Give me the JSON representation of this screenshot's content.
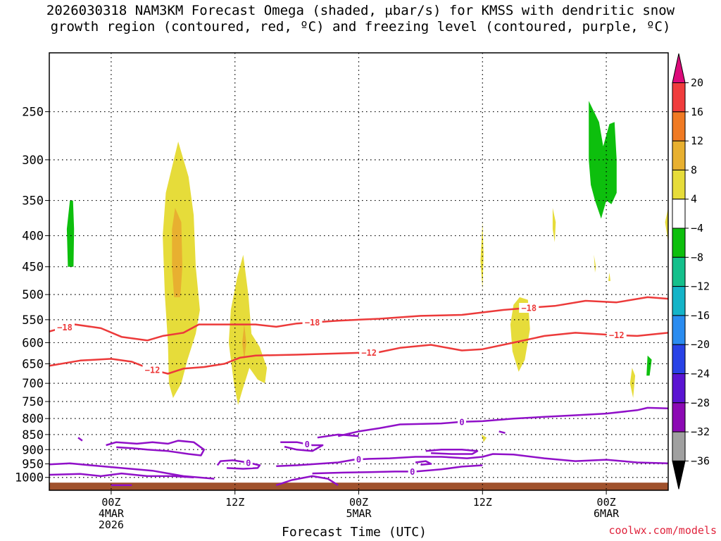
{
  "title_line1": "2026030318 NAM3KM Forecast Omega (shaded, μbar/s) for KMSS with dendritic snow",
  "title_line2": "growth region (contoured, red, ºC) and freezing level (contoured, purple, ºC)",
  "credit": "coolwx.com/models",
  "chart_data": {
    "type": "heatmap",
    "title": "2026030318 NAM3KM Forecast Omega (shaded, μbar/s) for KMSS with dendritic snow growth region (contoured, red, ºC) and freezing level (contoured, purple, ºC)",
    "xlabel": "Forecast Time (UTC)",
    "ylabel": "",
    "x_range_hours_from_init": [
      0,
      60
    ],
    "y_axis": "pressure (hPa), log scale, inverted",
    "ylim": [
      1050,
      200
    ],
    "grid": "dotted horizontal lines at pressure levels",
    "x_ticks": [
      {
        "hour": 6,
        "label": [
          "00Z",
          "4MAR",
          "2026"
        ]
      },
      {
        "hour": 18,
        "label": [
          "12Z"
        ]
      },
      {
        "hour": 30,
        "label": [
          "00Z",
          "5MAR"
        ]
      },
      {
        "hour": 42,
        "label": [
          "12Z"
        ]
      },
      {
        "hour": 54,
        "label": [
          "00Z",
          "6MAR"
        ]
      }
    ],
    "y_ticks": [
      250,
      300,
      350,
      400,
      450,
      500,
      550,
      600,
      650,
      700,
      750,
      800,
      850,
      900,
      950,
      1000
    ],
    "colorbar": {
      "units": "μbar/s",
      "labels": [
        20,
        16,
        12,
        8,
        4,
        -4,
        -8,
        -12,
        -16,
        -20,
        -24,
        -28,
        -32,
        -36
      ],
      "colors": [
        "#dc0a7a",
        "#f03c3c",
        "#f07a23",
        "#e8b030",
        "#e6dc3a",
        "#ffffff",
        "#0dbf0d",
        "#14c08c",
        "#14b4c8",
        "#2a8cf0",
        "#2842e6",
        "#5a14d2",
        "#8c0ab4",
        "#a0a0a0",
        "#000000"
      ]
    },
    "omega_regions": [
      {
        "value": -8,
        "color": "#0dbf0d",
        "points": [
          [
            2.0,
            350
          ],
          [
            2.3,
            350
          ],
          [
            2.4,
            390
          ],
          [
            2.35,
            450
          ],
          [
            1.8,
            450
          ],
          [
            1.7,
            390
          ]
        ]
      },
      {
        "value": 4,
        "color": "#e6dc3a",
        "points": [
          [
            12.5,
            280
          ],
          [
            13.5,
            320
          ],
          [
            14.0,
            370
          ],
          [
            14.2,
            450
          ],
          [
            14.6,
            530
          ],
          [
            14.2,
            580
          ],
          [
            13.4,
            640
          ],
          [
            12.8,
            700
          ],
          [
            12.0,
            740
          ],
          [
            11.6,
            700
          ],
          [
            11.5,
            600
          ],
          [
            11.2,
            500
          ],
          [
            11.0,
            400
          ],
          [
            11.3,
            340
          ]
        ]
      },
      {
        "value": 8,
        "color": "#e8b030",
        "points": [
          [
            12.2,
            360
          ],
          [
            12.8,
            380
          ],
          [
            12.9,
            450
          ],
          [
            12.7,
            505
          ],
          [
            12.1,
            505
          ],
          [
            11.9,
            450
          ],
          [
            11.9,
            390
          ]
        ]
      },
      {
        "value": 4,
        "color": "#e6dc3a",
        "points": [
          [
            18.8,
            430
          ],
          [
            19.3,
            500
          ],
          [
            19.6,
            580
          ],
          [
            20.4,
            610
          ],
          [
            21.1,
            660
          ],
          [
            20.9,
            700
          ],
          [
            20.2,
            690
          ],
          [
            19.4,
            660
          ],
          [
            18.7,
            720
          ],
          [
            18.3,
            760
          ],
          [
            17.9,
            700
          ],
          [
            17.4,
            600
          ],
          [
            17.6,
            530
          ],
          [
            18.2,
            470
          ]
        ]
      },
      {
        "value": 8,
        "color": "#e8b030",
        "points": [
          [
            18.9,
            560
          ],
          [
            19.1,
            600
          ],
          [
            18.9,
            640
          ],
          [
            18.7,
            600
          ]
        ]
      },
      {
        "value": 4,
        "color": "#e6dc3a",
        "points": [
          [
            42.0,
            380
          ],
          [
            42.1,
            430
          ],
          [
            42.0,
            490
          ],
          [
            41.8,
            440
          ]
        ]
      },
      {
        "value": 4,
        "color": "#e6dc3a",
        "points": [
          [
            45.6,
            505
          ],
          [
            46.4,
            510
          ],
          [
            46.6,
            570
          ],
          [
            46.1,
            640
          ],
          [
            45.5,
            670
          ],
          [
            44.9,
            620
          ],
          [
            44.7,
            560
          ],
          [
            45.0,
            520
          ]
        ]
      },
      {
        "value": 4,
        "color": "#e6dc3a",
        "points": [
          [
            48.8,
            360
          ],
          [
            49.1,
            380
          ],
          [
            49.0,
            410
          ],
          [
            48.8,
            390
          ]
        ]
      },
      {
        "value": 4,
        "color": "#e6dc3a",
        "points": [
          [
            52.8,
            430
          ],
          [
            53.0,
            450
          ],
          [
            52.9,
            460
          ]
        ]
      },
      {
        "value": 4,
        "color": "#e6dc3a",
        "points": [
          [
            54.3,
            460
          ],
          [
            54.4,
            475
          ],
          [
            54.2,
            475
          ]
        ]
      },
      {
        "value": -8,
        "color": "#0dbf0d",
        "points": [
          [
            52.3,
            240
          ],
          [
            53.3,
            260
          ],
          [
            53.7,
            285
          ],
          [
            54.3,
            262
          ],
          [
            54.8,
            260
          ],
          [
            55.0,
            300
          ],
          [
            55.0,
            340
          ],
          [
            54.5,
            355
          ],
          [
            54.0,
            350
          ],
          [
            53.5,
            375
          ],
          [
            52.9,
            350
          ],
          [
            52.5,
            330
          ],
          [
            52.3,
            300
          ]
        ]
      },
      {
        "value": 4,
        "color": "#e6dc3a",
        "points": [
          [
            56.5,
            660
          ],
          [
            56.8,
            680
          ],
          [
            56.6,
            740
          ],
          [
            56.3,
            700
          ]
        ]
      },
      {
        "value": -8,
        "color": "#0dbf0d",
        "points": [
          [
            58.0,
            630
          ],
          [
            58.4,
            640
          ],
          [
            58.2,
            680
          ],
          [
            57.9,
            680
          ]
        ]
      },
      {
        "value": 4,
        "color": "#e6dc3a",
        "points": [
          [
            60.0,
            360
          ],
          [
            60.0,
            410
          ],
          [
            59.7,
            380
          ]
        ]
      },
      {
        "value": 4,
        "color": "#e6dc3a",
        "points": [
          [
            41.9,
            850
          ],
          [
            42.4,
            860
          ],
          [
            42.1,
            875
          ]
        ]
      }
    ],
    "red_contours": [
      {
        "value": -18,
        "label_at_hours": [
          1.5,
          25.5,
          46.5
        ],
        "points": [
          [
            0,
            575
          ],
          [
            2.5,
            560
          ],
          [
            5,
            568
          ],
          [
            7,
            587
          ],
          [
            9.5,
            595
          ],
          [
            11,
            585
          ],
          [
            13,
            578
          ],
          [
            14.5,
            560
          ],
          [
            17,
            560
          ],
          [
            20,
            560
          ],
          [
            22,
            565
          ],
          [
            24,
            558
          ],
          [
            28,
            552
          ],
          [
            32,
            548
          ],
          [
            36,
            542
          ],
          [
            40,
            540
          ],
          [
            44,
            530
          ],
          [
            47,
            525
          ],
          [
            49,
            522
          ],
          [
            52,
            512
          ],
          [
            55,
            515
          ],
          [
            58,
            505
          ],
          [
            60,
            508
          ]
        ]
      },
      {
        "value": -12,
        "label_at_hours": [
          10,
          31,
          55
        ],
        "points": [
          [
            0,
            655
          ],
          [
            3,
            642
          ],
          [
            6,
            638
          ],
          [
            8,
            645
          ],
          [
            10,
            665
          ],
          [
            11.5,
            675
          ],
          [
            13,
            662
          ],
          [
            15,
            658
          ],
          [
            17,
            650
          ],
          [
            18.5,
            635
          ],
          [
            20,
            630
          ],
          [
            24,
            628
          ],
          [
            28,
            625
          ],
          [
            32,
            622
          ],
          [
            34,
            612
          ],
          [
            37,
            605
          ],
          [
            40,
            618
          ],
          [
            42,
            615
          ],
          [
            45,
            600
          ],
          [
            48,
            585
          ],
          [
            51,
            578
          ],
          [
            54,
            582
          ],
          [
            57,
            585
          ],
          [
            60,
            578
          ]
        ]
      }
    ],
    "purple_contours": [
      {
        "value": 0,
        "label_at_hours": [
          40
        ],
        "points": [
          [
            28,
            855
          ],
          [
            30,
            840
          ],
          [
            32,
            830
          ],
          [
            34,
            818
          ],
          [
            38,
            815
          ],
          [
            40,
            810
          ],
          [
            42,
            808
          ],
          [
            45,
            800
          ],
          [
            48,
            795
          ],
          [
            51,
            790
          ],
          [
            54,
            785
          ],
          [
            57,
            775
          ],
          [
            58,
            768
          ],
          [
            60,
            770
          ]
        ]
      },
      {
        "value": 0,
        "label_at_hours": [],
        "points": [
          [
            26,
            860
          ],
          [
            28,
            850
          ],
          [
            30,
            855
          ]
        ]
      },
      {
        "value": 0,
        "label_at_hours": [],
        "points": [
          [
            0,
            952
          ],
          [
            2,
            948
          ],
          [
            4,
            955
          ],
          [
            7,
            965
          ],
          [
            10,
            975
          ],
          [
            13,
            995
          ],
          [
            16,
            1005
          ]
        ]
      },
      {
        "value": 0,
        "label_at_hours": [],
        "points": [
          [
            0,
            990
          ],
          [
            3,
            987
          ],
          [
            5,
            995
          ],
          [
            7,
            985
          ],
          [
            9.5,
            995
          ],
          [
            12,
            995
          ],
          [
            14,
            1000
          ]
        ]
      },
      {
        "value": 0,
        "label_at_hours": [],
        "points": [
          [
            5.5,
            885
          ],
          [
            6.5,
            875
          ],
          [
            8.5,
            880
          ],
          [
            10,
            875
          ],
          [
            11.5,
            880
          ],
          [
            12.5,
            870
          ],
          [
            14,
            875
          ],
          [
            15,
            900
          ],
          [
            14.7,
            920
          ],
          [
            13.5,
            915
          ],
          [
            11.5,
            905
          ],
          [
            9.5,
            900
          ],
          [
            8,
            895
          ],
          [
            6.5,
            892
          ]
        ]
      },
      {
        "value": 0,
        "label_at_hours": [],
        "points": [
          [
            2.8,
            860
          ],
          [
            3.2,
            870
          ]
        ]
      },
      {
        "value": 0,
        "label_at_hours": [
          19.3
        ],
        "points": [
          [
            16.3,
            955
          ],
          [
            16.6,
            940
          ],
          [
            17.8,
            937
          ],
          [
            19.2,
            945
          ],
          [
            20.4,
            955
          ],
          [
            20.2,
            965
          ],
          [
            18.8,
            968
          ],
          [
            17.2,
            965
          ]
        ]
      },
      {
        "value": 0,
        "label_at_hours": [
          25
        ],
        "points": [
          [
            22.4,
            875
          ],
          [
            24,
            875
          ],
          [
            25.5,
            885
          ],
          [
            26.5,
            885
          ],
          [
            25.5,
            905
          ],
          [
            24,
            900
          ],
          [
            22.8,
            890
          ]
        ]
      },
      {
        "value": 0,
        "label_at_hours": [
          30
        ],
        "points": [
          [
            22,
            958
          ],
          [
            24,
            955
          ],
          [
            26,
            950
          ],
          [
            28,
            945
          ],
          [
            29.5,
            935
          ],
          [
            31,
            932
          ],
          [
            33,
            930
          ],
          [
            35.5,
            925
          ],
          [
            38,
            925
          ],
          [
            40.5,
            930
          ],
          [
            42,
            925
          ],
          [
            43,
            915
          ],
          [
            45,
            917
          ],
          [
            48,
            930
          ],
          [
            51,
            940
          ],
          [
            54,
            935
          ],
          [
            57,
            945
          ],
          [
            60,
            948
          ]
        ]
      },
      {
        "value": 0,
        "label_at_hours": [
          35.2
        ],
        "points": [
          [
            25.5,
            985
          ],
          [
            28.5,
            982
          ],
          [
            31,
            980
          ],
          [
            33.5,
            978
          ],
          [
            35.5,
            978
          ],
          [
            38,
            970
          ],
          [
            40,
            960
          ],
          [
            42,
            955
          ]
        ]
      },
      {
        "value": 0,
        "label_at_hours": [],
        "points": [
          [
            36.5,
            905
          ],
          [
            38,
            900
          ],
          [
            40,
            900
          ],
          [
            41.5,
            905
          ],
          [
            41,
            915
          ],
          [
            39,
            915
          ],
          [
            37,
            912
          ]
        ]
      },
      {
        "value": 0,
        "label_at_hours": [],
        "points": [
          [
            35.5,
            945
          ],
          [
            36.5,
            940
          ],
          [
            37,
            950
          ],
          [
            36,
            953
          ]
        ]
      },
      {
        "value": 0,
        "label_at_hours": [],
        "points": [
          [
            22,
            1030
          ],
          [
            23.5,
            1010
          ],
          [
            25.5,
            995
          ],
          [
            27,
            1005
          ],
          [
            28,
            1030
          ]
        ]
      },
      {
        "value": 0,
        "label_at_hours": [],
        "points": [
          [
            6,
            1030
          ],
          [
            8,
            1030
          ]
        ]
      },
      {
        "value": 0,
        "label_at_hours": [],
        "points": [
          [
            43.6,
            840
          ],
          [
            44.2,
            845
          ]
        ]
      }
    ],
    "ground": {
      "color": "#a0522d",
      "pressure_above": 1020
    }
  }
}
